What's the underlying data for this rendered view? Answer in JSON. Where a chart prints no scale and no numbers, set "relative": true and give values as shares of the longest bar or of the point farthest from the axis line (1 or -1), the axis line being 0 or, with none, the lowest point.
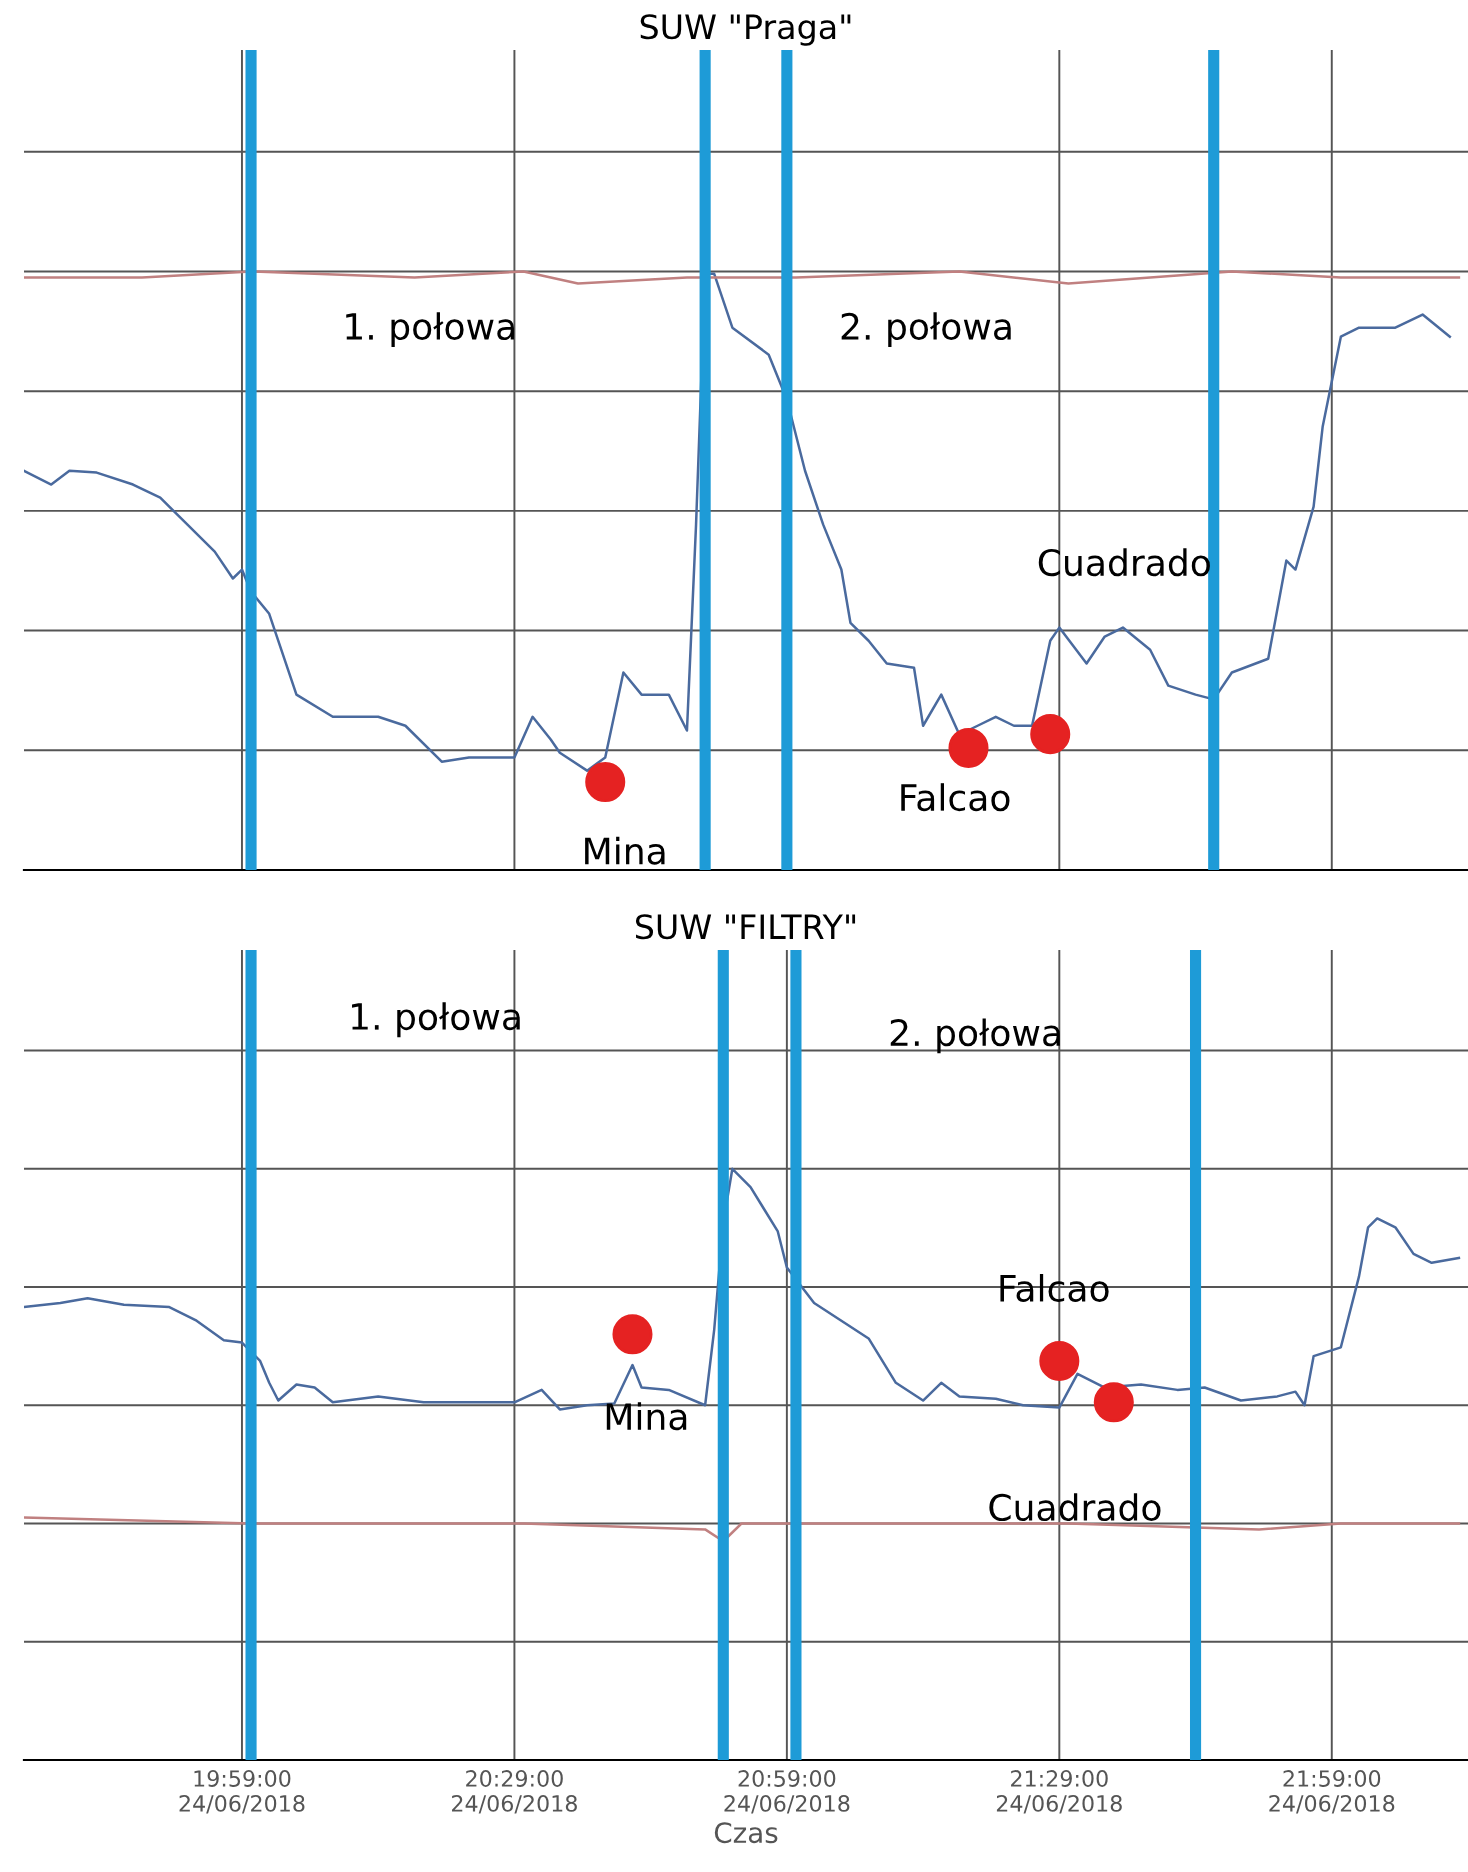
{
  "chart_data": [
    {
      "type": "line",
      "title": "SUW \"Praga\"",
      "relative": true,
      "grid": true,
      "tick_labels": false,
      "xlim": [
        "2018-06-24T19:35",
        "2018-06-24T22:14"
      ],
      "xticks": [
        {
          "value": "2018-06-24T19:59",
          "label": null
        },
        {
          "value": "2018-06-24T20:29",
          "label": null
        },
        {
          "value": "2018-06-24T20:59",
          "label": null
        },
        {
          "value": "2018-06-24T21:29",
          "label": null
        },
        {
          "value": "2018-06-24T21:59",
          "label": null
        }
      ],
      "series": [
        {
          "color": "#4a6a9e",
          "x": [
            "2018-06-24T19:35",
            "2018-06-24T19:38",
            "2018-06-24T19:40",
            "2018-06-24T19:43",
            "2018-06-24T19:47",
            "2018-06-24T19:50",
            "2018-06-24T19:53",
            "2018-06-24T19:56",
            "2018-06-24T19:58",
            "2018-06-24T19:59",
            "2018-06-24T20:00",
            "2018-06-24T20:02",
            "2018-06-24T20:05",
            "2018-06-24T20:09",
            "2018-06-24T20:14",
            "2018-06-24T20:17",
            "2018-06-24T20:21",
            "2018-06-24T20:24",
            "2018-06-24T20:29",
            "2018-06-24T20:31",
            "2018-06-24T20:33",
            "2018-06-24T20:34",
            "2018-06-24T20:37",
            "2018-06-24T20:39",
            "2018-06-24T20:41",
            "2018-06-24T20:43",
            "2018-06-24T20:46",
            "2018-06-24T20:48",
            "2018-06-24T20:49",
            "2018-06-24T20:50",
            "2018-06-24T20:51",
            "2018-06-24T20:53",
            "2018-06-24T20:57",
            "2018-06-24T20:59",
            "2018-06-24T21:01",
            "2018-06-24T21:03",
            "2018-06-24T21:05",
            "2018-06-24T21:06",
            "2018-06-24T21:08",
            "2018-06-24T21:10",
            "2018-06-24T21:13",
            "2018-06-24T21:14",
            "2018-06-24T21:16",
            "2018-06-24T21:18",
            "2018-06-24T21:20",
            "2018-06-24T21:22",
            "2018-06-24T21:24",
            "2018-06-24T21:26",
            "2018-06-24T21:28",
            "2018-06-24T21:29",
            "2018-06-24T21:32",
            "2018-06-24T21:34",
            "2018-06-24T21:36",
            "2018-06-24T21:39",
            "2018-06-24T21:41",
            "2018-06-24T21:44",
            "2018-06-24T21:46",
            "2018-06-24T21:48",
            "2018-06-24T21:52",
            "2018-06-24T21:54",
            "2018-06-24T21:55",
            "2018-06-24T21:57",
            "2018-06-24T21:58",
            "2018-06-24T22:00",
            "2018-06-24T22:02",
            "2018-06-24T22:04",
            "2018-06-24T22:06",
            "2018-06-24T22:09",
            "2018-06-24T22:12"
          ],
          "values": [
            0.667,
            0.644,
            0.667,
            0.664,
            0.644,
            0.622,
            0.577,
            0.532,
            0.487,
            0.502,
            0.465,
            0.428,
            0.293,
            0.256,
            0.256,
            0.241,
            0.181,
            0.188,
            0.188,
            0.256,
            0.218,
            0.196,
            0.166,
            0.188,
            0.33,
            0.293,
            0.293,
            0.233,
            0.577,
            0.996,
            0.996,
            0.906,
            0.861,
            0.786,
            0.667,
            0.577,
            0.502,
            0.413,
            0.383,
            0.345,
            0.338,
            0.241,
            0.293,
            0.226,
            0.241,
            0.256,
            0.241,
            0.241,
            0.383,
            0.405,
            0.345,
            0.39,
            0.405,
            0.368,
            0.308,
            0.293,
            0.285,
            0.33,
            0.353,
            0.517,
            0.502,
            0.607,
            0.741,
            0.891,
            0.906,
            0.906,
            0.906,
            0.928,
            0.891
          ]
        },
        {
          "color": "#c08080",
          "x": [
            "2018-06-24T19:35",
            "2018-06-24T19:48",
            "2018-06-24T20:00",
            "2018-06-24T20:18",
            "2018-06-24T20:30",
            "2018-06-24T20:36",
            "2018-06-24T20:48",
            "2018-06-24T21:00",
            "2018-06-24T21:18",
            "2018-06-24T21:30",
            "2018-06-24T21:48",
            "2018-06-24T22:00",
            "2018-06-24T22:13"
          ],
          "values": [
            0.99,
            0.99,
            1.0,
            0.99,
            1.0,
            0.98,
            0.99,
            0.99,
            1.0,
            0.98,
            1.0,
            0.99,
            0.99
          ]
        },
        {
          "type": "scatter",
          "marker": "circle",
          "color": "#e52222",
          "x": [
            "2018-06-24T20:39",
            "2018-06-24T21:19",
            "2018-06-24T21:28"
          ],
          "values": [
            0.147,
            0.204,
            0.227
          ]
        }
      ],
      "ref_lines": [
        {
          "axis": "x",
          "value": "2018-06-24T20:00",
          "color": "#1e9bd7"
        },
        {
          "axis": "x",
          "value": "2018-06-24T20:50",
          "color": "#1e9bd7"
        },
        {
          "axis": "x",
          "value": "2018-06-24T20:59",
          "color": "#1e9bd7"
        },
        {
          "axis": "x",
          "value": "2018-06-24T21:46",
          "color": "#1e9bd7"
        }
      ],
      "annotations": [
        "1. połowa",
        "2. połowa",
        {
          "text": "Mina",
          "x": "2018-06-24T20:39",
          "y": 0.147
        },
        {
          "text": "Falcao",
          "x": "2018-06-24T21:19",
          "y": 0.204
        },
        "Cuadrado"
      ]
    },
    {
      "type": "line",
      "title": "SUW \"FILTRY\"",
      "xlabel": "Czas",
      "relative": true,
      "grid": true,
      "tick_labels": "x",
      "xlim": [
        "2018-06-24T19:35",
        "2018-06-24T22:14"
      ],
      "xticks": [
        {
          "value": "2018-06-24T19:59",
          "label": "19:59:00\n24/06/2018"
        },
        {
          "value": "2018-06-24T20:29",
          "label": "20:29:00\n24/06/2018"
        },
        {
          "value": "2018-06-24T20:59",
          "label": "20:59:00\n24/06/2018"
        },
        {
          "value": "2018-06-24T21:29",
          "label": "21:29:00\n24/06/2018"
        },
        {
          "value": "2018-06-24T21:59",
          "label": "21:59:00\n24/06/2018"
        }
      ],
      "series": [
        {
          "color": "#4a6a9e",
          "x": [
            "2018-06-24T19:35",
            "2018-06-24T19:39",
            "2018-06-24T19:42",
            "2018-06-24T19:46",
            "2018-06-24T19:51",
            "2018-06-24T19:54",
            "2018-06-24T19:57",
            "2018-06-24T19:59",
            "2018-06-24T20:01",
            "2018-06-24T20:02",
            "2018-06-24T20:03",
            "2018-06-24T20:05",
            "2018-06-24T20:07",
            "2018-06-24T20:09",
            "2018-06-24T20:14",
            "2018-06-24T20:19",
            "2018-06-24T20:24",
            "2018-06-24T20:29",
            "2018-06-24T20:32",
            "2018-06-24T20:34",
            "2018-06-24T20:37",
            "2018-06-24T20:40",
            "2018-06-24T20:42",
            "2018-06-24T20:43",
            "2018-06-24T20:46",
            "2018-06-24T20:50",
            "2018-06-24T20:51",
            "2018-06-24T20:52",
            "2018-06-24T20:53",
            "2018-06-24T20:55",
            "2018-06-24T20:58",
            "2018-06-24T20:59",
            "2018-06-24T21:02",
            "2018-06-24T21:05",
            "2018-06-24T21:08",
            "2018-06-24T21:11",
            "2018-06-24T21:14",
            "2018-06-24T21:16",
            "2018-06-24T21:18",
            "2018-06-24T21:22",
            "2018-06-24T21:25",
            "2018-06-24T21:29",
            "2018-06-24T21:31",
            "2018-06-24T21:34",
            "2018-06-24T21:38",
            "2018-06-24T21:42",
            "2018-06-24T21:45",
            "2018-06-24T21:49",
            "2018-06-24T21:53",
            "2018-06-24T21:55",
            "2018-06-24T21:56",
            "2018-06-24T21:57",
            "2018-06-24T22:00",
            "2018-06-24T22:02",
            "2018-06-24T22:03",
            "2018-06-24T22:04",
            "2018-06-24T22:06",
            "2018-06-24T22:08",
            "2018-06-24T22:10",
            "2018-06-24T22:13"
          ],
          "values": [
            0.766,
            0.773,
            0.781,
            0.77,
            0.766,
            0.743,
            0.71,
            0.706,
            0.675,
            0.638,
            0.608,
            0.635,
            0.63,
            0.605,
            0.615,
            0.605,
            0.605,
            0.605,
            0.626,
            0.593,
            0.6,
            0.603,
            0.668,
            0.63,
            0.626,
            0.6,
            0.728,
            0.909,
            1.0,
            0.969,
            0.894,
            0.833,
            0.773,
            0.743,
            0.713,
            0.638,
            0.608,
            0.638,
            0.615,
            0.611,
            0.6,
            0.596,
            0.653,
            0.63,
            0.635,
            0.626,
            0.63,
            0.608,
            0.615,
            0.623,
            0.6,
            0.683,
            0.698,
            0.818,
            0.901,
            0.916,
            0.901,
            0.856,
            0.841,
            0.849
          ]
        },
        {
          "color": "#c08080",
          "x": [
            "2018-06-24T19:35",
            "2018-06-24T20:00",
            "2018-06-24T20:30",
            "2018-06-24T20:50",
            "2018-06-24T20:52",
            "2018-06-24T20:54",
            "2018-06-24T21:30",
            "2018-06-24T21:51",
            "2018-06-24T22:00",
            "2018-06-24T22:13"
          ],
          "values": [
            0.41,
            0.4,
            0.4,
            0.39,
            0.37,
            0.4,
            0.4,
            0.39,
            0.4,
            0.4
          ]
        },
        {
          "type": "scatter",
          "marker": "circle",
          "color": "#e52222",
          "x": [
            "2018-06-24T20:42",
            "2018-06-24T21:29",
            "2018-06-24T21:35"
          ],
          "values": [
            0.72,
            0.675,
            0.605
          ]
        }
      ],
      "ref_lines": [
        {
          "axis": "x",
          "value": "2018-06-24T20:00",
          "color": "#1e9bd7"
        },
        {
          "axis": "x",
          "value": "2018-06-24T20:52",
          "color": "#1e9bd7"
        },
        {
          "axis": "x",
          "value": "2018-06-24T21:00",
          "color": "#1e9bd7"
        },
        {
          "axis": "x",
          "value": "2018-06-24T21:44",
          "color": "#1e9bd7"
        }
      ],
      "annotations": [
        "1. połowa",
        "2. połowa",
        "Mina",
        {
          "text": "Falcao",
          "x": "2018-06-24T21:29",
          "y": 0.675
        },
        {
          "text": "Cuadrado",
          "x": "2018-06-24T21:35",
          "y": 0.605
        }
      ]
    }
  ]
}
